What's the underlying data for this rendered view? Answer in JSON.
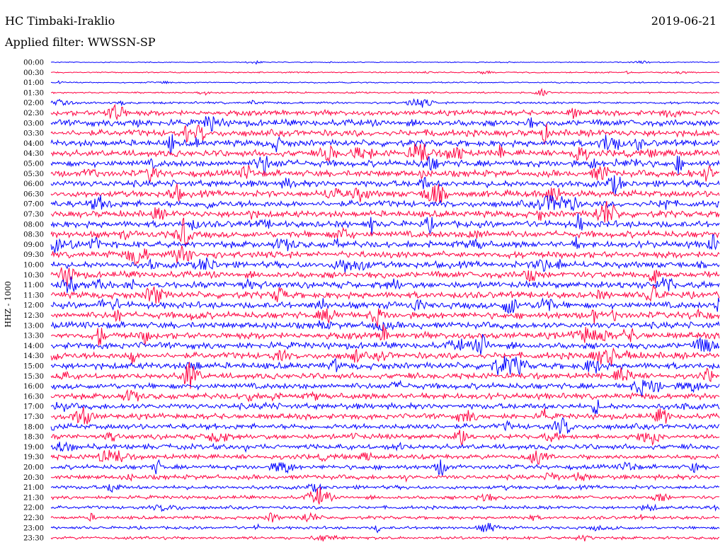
{
  "header": {
    "title": "HC Timbaki-Iraklio",
    "date": "2019-06-21",
    "filter": "Applied filter: WWSSN-SP"
  },
  "chart_data": {
    "type": "line",
    "ylabel": "HHZ - 1000",
    "colors": [
      "#0000ff",
      "#ff0040"
    ],
    "tick_labels": [
      "00:00",
      "00:30",
      "01:00",
      "01:30",
      "02:00",
      "02:30",
      "03:00",
      "03:30",
      "04:00",
      "04:30",
      "05:00",
      "05:30",
      "06:00",
      "06:30",
      "07:00",
      "07:30",
      "08:00",
      "08:30",
      "09:00",
      "09:30",
      "10:00",
      "10:30",
      "11:00",
      "11:30",
      "12:00",
      "12:30",
      "13:00",
      "13:30",
      "14:00",
      "14:30",
      "15:00",
      "15:30",
      "16:00",
      "16:30",
      "17:00",
      "17:30",
      "18:00",
      "18:30",
      "19:00",
      "19:30",
      "20:00",
      "20:30",
      "21:00",
      "21:30",
      "22:00",
      "22:30",
      "23:00",
      "23:30"
    ],
    "noise_level": [
      0.15,
      0.2,
      0.2,
      0.25,
      0.35,
      0.8,
      1.0,
      1.0,
      1.0,
      1.0,
      1.0,
      1.0,
      1.0,
      1.0,
      1.0,
      1.0,
      1.0,
      1.0,
      1.0,
      1.0,
      1.0,
      1.0,
      1.0,
      1.0,
      1.0,
      1.0,
      1.0,
      1.0,
      1.0,
      1.0,
      1.0,
      0.9,
      0.9,
      0.9,
      0.9,
      0.85,
      0.85,
      0.8,
      0.8,
      0.75,
      0.7,
      0.7,
      0.6,
      0.55,
      0.5,
      0.5,
      0.45,
      0.45
    ]
  }
}
